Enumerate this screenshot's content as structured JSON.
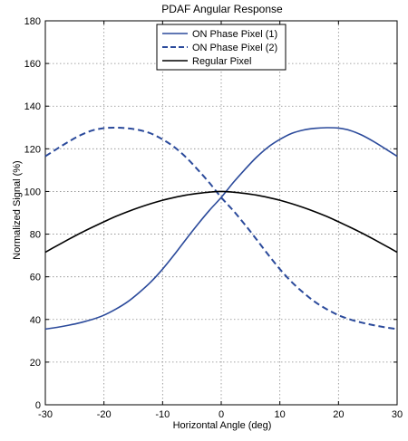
{
  "chart_data": {
    "type": "line",
    "title": "PDAF Angular Response",
    "xlabel": "Horizontal Angle (deg)",
    "ylabel": "Normalized Signal (%)",
    "xlim": [
      -30,
      30
    ],
    "ylim": [
      0,
      180
    ],
    "xticks": [
      -30,
      -20,
      -10,
      0,
      10,
      20,
      30
    ],
    "yticks": [
      0,
      20,
      40,
      60,
      80,
      100,
      120,
      140,
      160,
      180
    ],
    "grid": true,
    "legend_position": "top-center",
    "series": [
      {
        "name": "ON Phase Pixel (1)",
        "color": "#2b4a9b",
        "line_style": "solid",
        "x": [
          -30,
          -28,
          -26,
          -24,
          -22,
          -20,
          -18,
          -16,
          -14,
          -12,
          -10,
          -8,
          -6,
          -4,
          -2,
          0,
          2,
          4,
          6,
          8,
          10,
          12,
          14,
          16,
          18,
          20,
          22,
          24,
          26,
          28,
          30
        ],
        "y": [
          35.5,
          36.3,
          37.3,
          38.5,
          40.0,
          42.0,
          44.8,
          48.2,
          52.6,
          57.6,
          63.6,
          70.4,
          77.6,
          84.6,
          91.2,
          97.2,
          104.0,
          110.2,
          116.0,
          120.8,
          124.4,
          127.2,
          128.8,
          129.6,
          129.9,
          129.7,
          128.6,
          126.4,
          123.4,
          120.0,
          116.5
        ]
      },
      {
        "name": "ON Phase Pixel (2)",
        "color": "#2b4a9b",
        "line_style": "dashed",
        "x": [
          -30,
          -28,
          -26,
          -24,
          -22,
          -20,
          -18,
          -16,
          -14,
          -12,
          -10,
          -8,
          -6,
          -4,
          -2,
          0,
          2,
          4,
          6,
          8,
          10,
          12,
          14,
          16,
          18,
          20,
          22,
          24,
          26,
          28,
          30
        ],
        "y": [
          116.5,
          120.0,
          123.4,
          126.4,
          128.6,
          129.7,
          129.9,
          129.6,
          128.8,
          127.2,
          124.4,
          120.8,
          116.0,
          110.2,
          104.0,
          97.2,
          91.2,
          84.6,
          77.6,
          70.4,
          63.6,
          57.6,
          52.6,
          48.2,
          44.8,
          42.0,
          40.0,
          38.5,
          37.3,
          36.3,
          35.5
        ]
      },
      {
        "name": "Regular Pixel",
        "color": "#000000",
        "line_style": "solid",
        "x": [
          -30,
          -28,
          -26,
          -24,
          -22,
          -20,
          -18,
          -16,
          -14,
          -12,
          -10,
          -8,
          -6,
          -4,
          -2,
          0,
          2,
          4,
          6,
          8,
          10,
          12,
          14,
          16,
          18,
          20,
          22,
          24,
          26,
          28,
          30
        ],
        "y": [
          71.5,
          74.6,
          77.6,
          80.5,
          83.2,
          85.8,
          88.3,
          90.5,
          92.5,
          94.3,
          95.9,
          97.2,
          98.3,
          99.1,
          99.7,
          100.0,
          99.7,
          99.1,
          98.3,
          97.2,
          95.9,
          94.3,
          92.5,
          90.5,
          88.3,
          85.8,
          83.2,
          80.5,
          77.6,
          74.6,
          71.5
        ]
      }
    ]
  }
}
